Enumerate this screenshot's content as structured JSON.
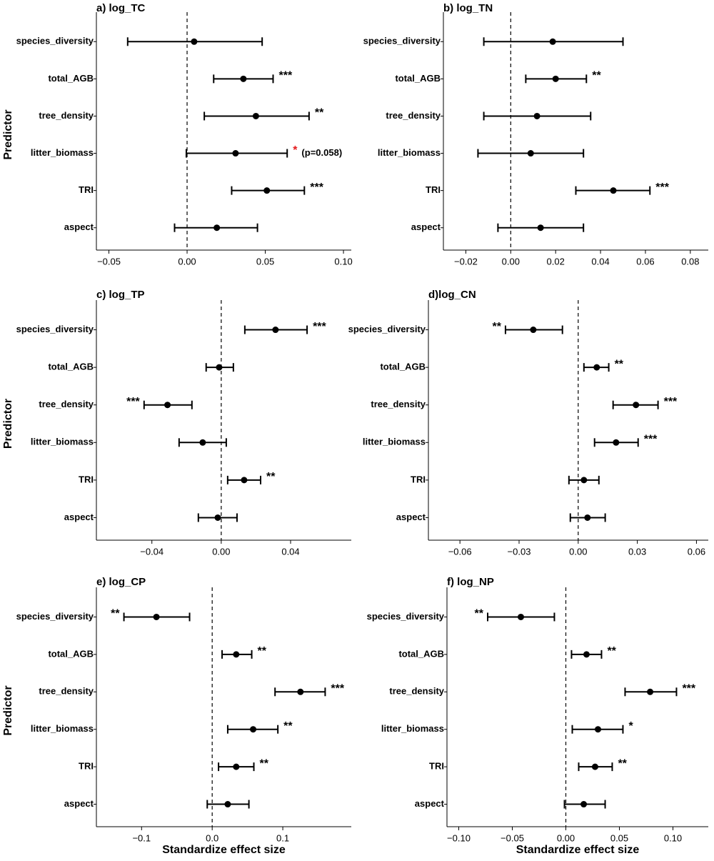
{
  "chart_data": [
    {
      "type": "forest",
      "title": "a) log_TC",
      "ylabel": "Predictor",
      "categories": [
        "species_diversity",
        "total_AGB",
        "tree_density",
        "litter_biomass",
        "TRI",
        "aspect"
      ],
      "values": [
        0.0045,
        0.036,
        0.044,
        0.031,
        0.051,
        0.019
      ],
      "lower": [
        -0.038,
        0.017,
        0.011,
        -0.0005,
        0.0285,
        -0.008
      ],
      "upper": [
        0.048,
        0.055,
        0.078,
        0.064,
        0.075,
        0.045
      ],
      "significance": [
        null,
        "***",
        "**",
        "*",
        "***",
        null
      ],
      "highlight": [
        false,
        false,
        false,
        true,
        false,
        false
      ],
      "notes": [
        null,
        null,
        null,
        "(p=0.058)",
        null,
        null
      ],
      "color": "#000000",
      "highlight_color": "#e41a1c",
      "reference_line": 0,
      "xlim": [
        -0.058,
        0.105
      ],
      "xticks": [
        {
          "value": -0.05,
          "label": "−0.05"
        },
        {
          "value": 0,
          "label": "0.00"
        },
        {
          "value": 0.05,
          "label": "0.05"
        },
        {
          "value": 0.1,
          "label": "0.10"
        }
      ]
    },
    {
      "type": "forest",
      "title": "b) log_TN",
      "categories": [
        "species_diversity",
        "total_AGB",
        "tree_density",
        "litter_biomass",
        "TRI",
        "aspect"
      ],
      "values": [
        0.0187,
        0.02,
        0.0117,
        0.0089,
        0.0457,
        0.0133
      ],
      "lower": [
        -0.012,
        0.0067,
        -0.012,
        -0.0146,
        0.029,
        -0.0057
      ],
      "upper": [
        0.05,
        0.0337,
        0.0356,
        0.0324,
        0.062,
        0.0324
      ],
      "significance": [
        null,
        "**",
        null,
        null,
        "***",
        null
      ],
      "color": "#000000",
      "reference_line": 0,
      "xlim": [
        -0.03,
        0.088
      ],
      "xticks": [
        {
          "value": -0.02,
          "label": "−0.02"
        },
        {
          "value": 0,
          "label": "0.00"
        },
        {
          "value": 0.02,
          "label": "0.02"
        },
        {
          "value": 0.04,
          "label": "0.04"
        },
        {
          "value": 0.06,
          "label": "0.06"
        },
        {
          "value": 0.08,
          "label": "0.08"
        }
      ]
    },
    {
      "type": "forest",
      "title": "c) log_TP",
      "ylabel": "Predictor",
      "categories": [
        "species_diversity",
        "total_AGB",
        "tree_density",
        "litter_biomass",
        "TRI",
        "aspect"
      ],
      "values": [
        0.0313,
        -0.0012,
        -0.031,
        -0.0107,
        0.0132,
        -0.002
      ],
      "lower": [
        0.0136,
        -0.0087,
        -0.0445,
        -0.0243,
        0.0037,
        -0.0132
      ],
      "upper": [
        0.0495,
        0.007,
        -0.0169,
        0.0029,
        0.0227,
        0.0091
      ],
      "significance": [
        "***",
        null,
        "***",
        null,
        "**",
        null
      ],
      "color": "#000000",
      "reference_line": 0,
      "xlim": [
        -0.072,
        0.075
      ],
      "xticks": [
        {
          "value": -0.04,
          "label": "−0.04"
        },
        {
          "value": 0,
          "label": "0.00"
        },
        {
          "value": 0.04,
          "label": "0.04"
        }
      ]
    },
    {
      "type": "forest",
      "title": "d)log_CN",
      "categories": [
        "species_diversity",
        "total_AGB",
        "tree_density",
        "litter_biomass",
        "TRI",
        "aspect"
      ],
      "values": [
        -0.0228,
        0.0094,
        0.0293,
        0.0192,
        0.0029,
        0.0047
      ],
      "lower": [
        -0.0369,
        0.0029,
        0.0177,
        0.0083,
        -0.0047,
        -0.004
      ],
      "upper": [
        -0.008,
        0.0155,
        0.0405,
        0.0304,
        0.0105,
        0.0137
      ],
      "significance": [
        "**",
        "**",
        "***",
        "***",
        null,
        null
      ],
      "color": "#000000",
      "reference_line": 0,
      "xlim": [
        -0.076,
        0.066
      ],
      "xticks": [
        {
          "value": -0.06,
          "label": "−0.06"
        },
        {
          "value": -0.03,
          "label": "−0.03"
        },
        {
          "value": 0,
          "label": "0.00"
        },
        {
          "value": 0.03,
          "label": "0.03"
        },
        {
          "value": 0.06,
          "label": "0.06"
        }
      ]
    },
    {
      "type": "forest",
      "title": "e) log_CP",
      "ylabel": "Predictor",
      "xlabel": "Standardize effect size",
      "categories": [
        "species_diversity",
        "total_AGB",
        "tree_density",
        "litter_biomass",
        "TRI",
        "aspect"
      ],
      "values": [
        -0.079,
        0.034,
        0.125,
        0.058,
        0.034,
        0.022
      ],
      "lower": [
        -0.125,
        0.014,
        0.089,
        0.022,
        0.009,
        -0.007
      ],
      "upper": [
        -0.032,
        0.056,
        0.16,
        0.093,
        0.059,
        0.052
      ],
      "significance": [
        "**",
        "**",
        "***",
        "**",
        "**",
        null
      ],
      "color": "#000000",
      "reference_line": 0,
      "xlim": [
        -0.164,
        0.197
      ],
      "xticks": [
        {
          "value": -0.1,
          "label": "−0.1"
        },
        {
          "value": 0,
          "label": "0.0"
        },
        0.1
      ]
    },
    {
      "type": "forest",
      "title": "f) log_NP",
      "xlabel": "Standardize effect size",
      "categories": [
        "species_diversity",
        "total_AGB",
        "tree_density",
        "litter_biomass",
        "TRI",
        "aspect"
      ],
      "values": [
        -0.042,
        0.0193,
        0.0787,
        0.03,
        0.0273,
        0.0167
      ],
      "lower": [
        -0.073,
        0.0053,
        0.0553,
        0.006,
        0.012,
        -0.0013
      ],
      "upper": [
        -0.0107,
        0.0333,
        0.1033,
        0.0533,
        0.0433,
        0.0367
      ],
      "significance": [
        "**",
        "**",
        "***",
        "*",
        "**",
        null
      ],
      "color": "#000000",
      "reference_line": 0,
      "xlim": [
        -0.111,
        0.133
      ],
      "xticks": [
        {
          "value": -0.1,
          "label": "−0.10"
        },
        {
          "value": -0.05,
          "label": "−0.05"
        },
        {
          "value": 0,
          "label": "0.00"
        },
        0.05,
        {
          "value": 0.1,
          "label": "0.10"
        }
      ]
    }
  ]
}
